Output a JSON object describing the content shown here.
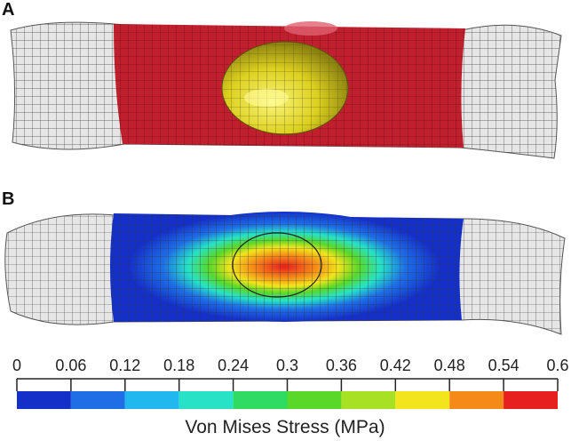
{
  "panels": [
    {
      "label": "A",
      "description_colors": {
        "mesh": "#e6e6e6",
        "vessel": "#c0202e",
        "sphere": "#e8e020"
      }
    },
    {
      "label": "B"
    }
  ],
  "colorbar": {
    "title": "Von Mises Stress (MPa)",
    "ticks": [
      "0",
      "0.06",
      "0.12",
      "0.18",
      "0.24",
      "0.3",
      "0.36",
      "0.42",
      "0.48",
      "0.54",
      "0.6"
    ],
    "colors": [
      "#1530c8",
      "#1e6fe6",
      "#21b7ef",
      "#27e2c6",
      "#2fdc62",
      "#5ad82a",
      "#a8e024",
      "#f2e41d",
      "#f58a19",
      "#e81f1f"
    ]
  }
}
